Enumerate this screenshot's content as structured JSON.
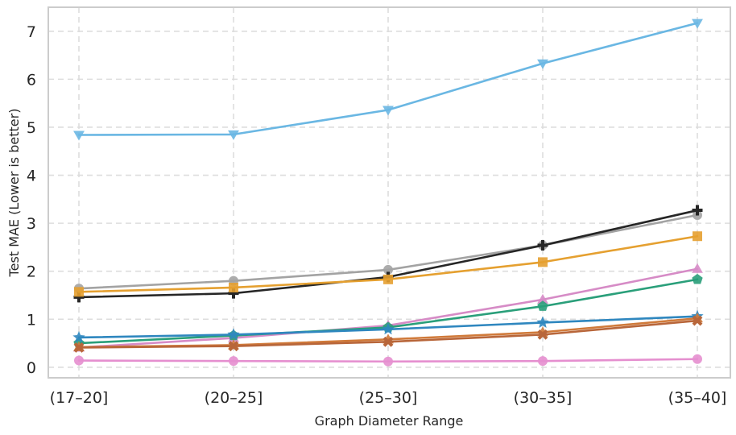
{
  "chart_data": {
    "type": "line",
    "title": "",
    "xlabel": "Graph Diameter Range",
    "ylabel": "Test MAE (Lower is better)",
    "categories": [
      "(17–20]",
      "(20–25]",
      "(25–30]",
      "(30–35]",
      "(35–40]"
    ],
    "ylim": [
      -0.22,
      7.5
    ],
    "yticks": [
      0,
      1,
      2,
      3,
      4,
      5,
      6,
      7
    ],
    "grid": true,
    "legend": "none",
    "series": [
      {
        "name": "series-sky",
        "color": "#6ab7e3",
        "marker": "tri-down",
        "values": [
          4.84,
          4.85,
          5.36,
          6.33,
          7.17
        ]
      },
      {
        "name": "series-gray",
        "color": "#a3a3a3",
        "marker": "circle",
        "values": [
          1.64,
          1.8,
          2.03,
          2.54,
          3.17
        ]
      },
      {
        "name": "series-black",
        "color": "#262626",
        "marker": "plus",
        "values": [
          1.46,
          1.54,
          1.88,
          2.54,
          3.27
        ]
      },
      {
        "name": "series-orange",
        "color": "#e5a030",
        "marker": "square",
        "values": [
          1.57,
          1.66,
          1.83,
          2.19,
          2.73
        ]
      },
      {
        "name": "series-pink",
        "color": "#d68bc6",
        "marker": "tri-up",
        "values": [
          0.41,
          0.61,
          0.87,
          1.41,
          2.05
        ]
      },
      {
        "name": "series-green",
        "color": "#2a9f7a",
        "marker": "pentagon",
        "values": [
          0.5,
          0.66,
          0.83,
          1.27,
          1.83
        ]
      },
      {
        "name": "series-blue",
        "color": "#2f87bf",
        "marker": "star",
        "values": [
          0.62,
          0.68,
          0.79,
          0.93,
          1.06
        ]
      },
      {
        "name": "series-rust",
        "color": "#d07a3a",
        "marker": "tri-up",
        "values": [
          0.42,
          0.46,
          0.58,
          0.73,
          1.02
        ]
      },
      {
        "name": "series-brown",
        "color": "#b8663a",
        "marker": "x",
        "values": [
          0.41,
          0.44,
          0.53,
          0.68,
          0.97
        ]
      },
      {
        "name": "series-magenta",
        "color": "#e58fcf",
        "marker": "circle",
        "values": [
          0.14,
          0.13,
          0.12,
          0.13,
          0.17
        ]
      }
    ]
  }
}
